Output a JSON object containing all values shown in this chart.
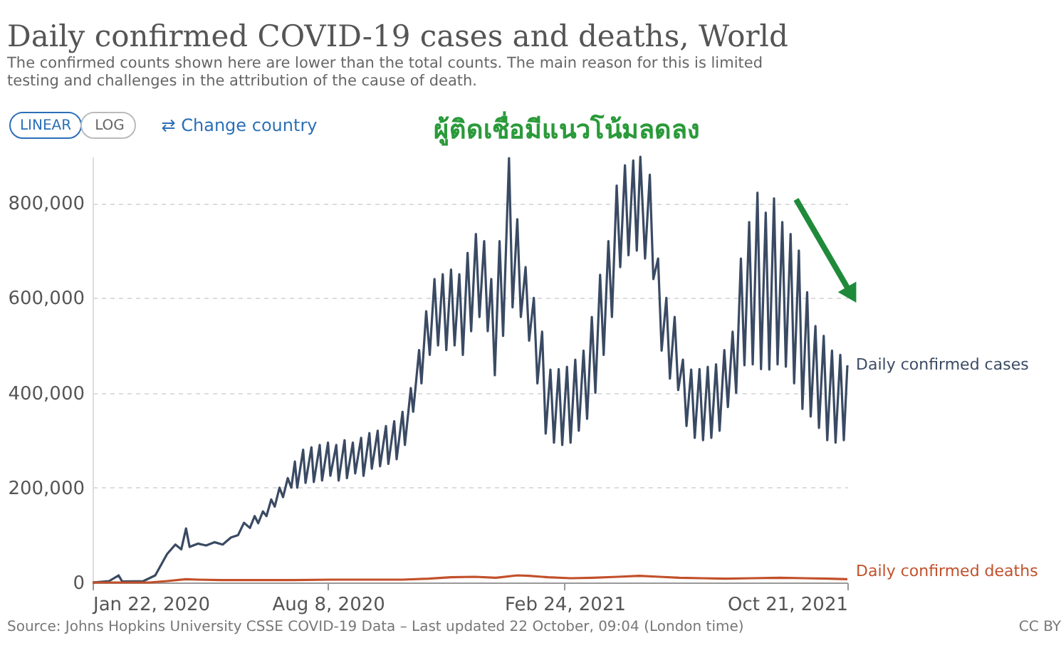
{
  "chart_data": {
    "type": "line",
    "title": "Daily confirmed COVID-19 cases and deaths, World",
    "subtitle": "The confirmed counts shown here are lower than the total counts. The main reason for this is limited testing and challenges in the attribution of the cause of death.",
    "annotations": [
      "ผู้ติดเชื่อมีแนวโน้มลดลง",
      "LINEAR",
      "LOG",
      "⇄ Change country",
      "Source: Johns Hopkins University CSSE COVID-19 Data – Last updated 22 October, 09:04 (London time)",
      "CC BY"
    ],
    "xlim": [
      "2020-01-22",
      "2021-10-21"
    ],
    "xticks": [
      {
        "value": "2020-01-22",
        "label": "Jan 22, 2020"
      },
      {
        "value": "2020-08-08",
        "label": "Aug 8, 2020"
      },
      {
        "value": "2021-02-24",
        "label": "Feb 24, 2021"
      },
      {
        "value": "2021-10-21",
        "label": "Oct 21, 2021"
      }
    ],
    "yticks": [
      {
        "value": 0,
        "label": "0"
      },
      {
        "value": 200000,
        "label": "200,000"
      },
      {
        "value": 400000,
        "label": "400,000"
      },
      {
        "value": 600000,
        "label": "600,000"
      },
      {
        "value": 800000,
        "label": "800,000"
      }
    ],
    "ylim": [
      0,
      898000
    ],
    "grid": "y",
    "legend": false,
    "series": [
      {
        "name": "Daily confirmed cases",
        "color": "#3a4a63",
        "x": [
          "2020-01-22",
          "2020-02-05",
          "2020-02-13",
          "2020-02-16",
          "2020-03-05",
          "2020-03-15",
          "2020-03-25",
          "2020-04-01",
          "2020-04-06",
          "2020-04-10",
          "2020-04-13",
          "2020-04-20",
          "2020-04-27",
          "2020-05-04",
          "2020-05-11",
          "2020-05-18",
          "2020-05-24",
          "2020-05-29",
          "2020-06-03",
          "2020-06-07",
          "2020-06-10",
          "2020-06-14",
          "2020-06-17",
          "2020-06-21",
          "2020-06-24",
          "2020-06-28",
          "2020-07-01",
          "2020-07-05",
          "2020-07-08",
          "2020-07-11",
          "2020-07-13",
          "2020-07-18",
          "2020-07-20",
          "2020-07-25",
          "2020-07-27",
          "2020-08-01",
          "2020-08-03",
          "2020-08-08",
          "2020-08-10",
          "2020-08-15",
          "2020-08-17",
          "2020-08-22",
          "2020-08-24",
          "2020-08-29",
          "2020-08-31",
          "2020-09-05",
          "2020-09-07",
          "2020-09-12",
          "2020-09-14",
          "2020-09-19",
          "2020-09-21",
          "2020-09-26",
          "2020-09-28",
          "2020-10-03",
          "2020-10-05",
          "2020-10-10",
          "2020-10-12",
          "2020-10-17",
          "2020-10-19",
          "2020-10-24",
          "2020-10-26",
          "2020-10-30",
          "2020-11-02",
          "2020-11-06",
          "2020-11-09",
          "2020-11-13",
          "2020-11-16",
          "2020-11-20",
          "2020-11-23",
          "2020-11-27",
          "2020-11-30",
          "2020-12-04",
          "2020-12-07",
          "2020-12-11",
          "2020-12-14",
          "2020-12-18",
          "2020-12-21",
          "2020-12-24",
          "2020-12-27",
          "2020-12-31",
          "2021-01-03",
          "2021-01-08",
          "2021-01-11",
          "2021-01-15",
          "2021-01-18",
          "2021-01-22",
          "2021-01-25",
          "2021-01-29",
          "2021-02-01",
          "2021-02-05",
          "2021-02-08",
          "2021-02-12",
          "2021-02-15",
          "2021-02-19",
          "2021-02-22",
          "2021-02-26",
          "2021-03-01",
          "2021-03-05",
          "2021-03-08",
          "2021-03-12",
          "2021-03-15",
          "2021-03-19",
          "2021-03-22",
          "2021-03-26",
          "2021-03-29",
          "2021-04-02",
          "2021-04-05",
          "2021-04-09",
          "2021-04-12",
          "2021-04-16",
          "2021-04-19",
          "2021-04-23",
          "2021-04-26",
          "2021-04-29",
          "2021-05-03",
          "2021-05-07",
          "2021-05-10",
          "2021-05-14",
          "2021-05-17",
          "2021-05-21",
          "2021-05-24",
          "2021-05-28",
          "2021-05-31",
          "2021-06-04",
          "2021-06-07",
          "2021-06-11",
          "2021-06-14",
          "2021-06-18",
          "2021-06-21",
          "2021-06-25",
          "2021-06-28",
          "2021-07-02",
          "2021-07-05",
          "2021-07-09",
          "2021-07-12",
          "2021-07-16",
          "2021-07-19",
          "2021-07-23",
          "2021-07-26",
          "2021-07-30",
          "2021-08-02",
          "2021-08-06",
          "2021-08-09",
          "2021-08-13",
          "2021-08-16",
          "2021-08-20",
          "2021-08-23",
          "2021-08-27",
          "2021-08-30",
          "2021-09-03",
          "2021-09-06",
          "2021-09-10",
          "2021-09-13",
          "2021-09-17",
          "2021-09-20",
          "2021-09-24",
          "2021-09-27",
          "2021-10-01",
          "2021-10-04",
          "2021-10-08",
          "2021-10-11",
          "2021-10-15",
          "2021-10-18",
          "2021-10-21"
        ],
        "values": [
          0,
          3000,
          15000,
          2000,
          3000,
          15000,
          60000,
          80000,
          70000,
          114000,
          75000,
          82000,
          78000,
          85000,
          80000,
          95000,
          100000,
          126000,
          115000,
          140000,
          125000,
          150000,
          140000,
          175000,
          160000,
          200000,
          180000,
          220000,
          200000,
          255000,
          200000,
          280000,
          210000,
          285000,
          212000,
          290000,
          215000,
          295000,
          225000,
          290000,
          215000,
          300000,
          220000,
          295000,
          230000,
          305000,
          225000,
          315000,
          240000,
          320000,
          245000,
          330000,
          250000,
          340000,
          260000,
          360000,
          290000,
          410000,
          360000,
          490000,
          420000,
          572000,
          480000,
          640000,
          500000,
          650000,
          490000,
          660000,
          500000,
          650000,
          480000,
          695000,
          530000,
          735000,
          560000,
          720000,
          530000,
          640000,
          437000,
          720000,
          520000,
          895000,
          580000,
          766000,
          560000,
          665000,
          510000,
          600000,
          420000,
          529000,
          314000,
          449000,
          295000,
          450000,
          290000,
          455000,
          295000,
          470000,
          320000,
          489000,
          345000,
          560000,
          400000,
          649000,
          480000,
          720000,
          560000,
          837000,
          665000,
          880000,
          690000,
          890000,
          700000,
          898000,
          683000,
          860000,
          640000,
          683000,
          489000,
          600000,
          430000,
          560000,
          406000,
          470000,
          330000,
          449000,
          305000,
          450000,
          300000,
          455000,
          305000,
          460000,
          320000,
          490000,
          370000,
          529000,
          400000,
          683000,
          458000,
          760000,
          460000,
          822000,
          450000,
          780000,
          449000,
          810000,
          460000,
          760000,
          455000,
          735000,
          420000,
          700000,
          366000,
          612000,
          350000,
          541000,
          326000,
          520000,
          300000,
          489000,
          295000,
          480000,
          300000,
          458000
        ]
      },
      {
        "name": "Daily confirmed deaths",
        "color": "#c2502a",
        "x": [
          "2020-01-22",
          "2020-03-10",
          "2020-03-25",
          "2020-04-10",
          "2020-04-20",
          "2020-05-10",
          "2020-06-10",
          "2020-07-10",
          "2020-08-10",
          "2020-09-10",
          "2020-10-10",
          "2020-11-01",
          "2020-11-20",
          "2020-12-10",
          "2020-12-28",
          "2021-01-15",
          "2021-01-25",
          "2021-02-10",
          "2021-03-01",
          "2021-03-20",
          "2021-04-10",
          "2021-04-28",
          "2021-05-15",
          "2021-06-01",
          "2021-06-20",
          "2021-07-10",
          "2021-08-01",
          "2021-08-25",
          "2021-09-15",
          "2021-10-05",
          "2021-10-21"
        ],
        "values": [
          0,
          0,
          3000,
          7000,
          6000,
          5000,
          5000,
          5000,
          6000,
          6000,
          6000,
          8000,
          11000,
          12000,
          10000,
          15000,
          14000,
          11000,
          9000,
          10000,
          12000,
          14000,
          12000,
          10000,
          9000,
          8000,
          9000,
          10000,
          9000,
          8000,
          7000
        ]
      }
    ]
  }
}
